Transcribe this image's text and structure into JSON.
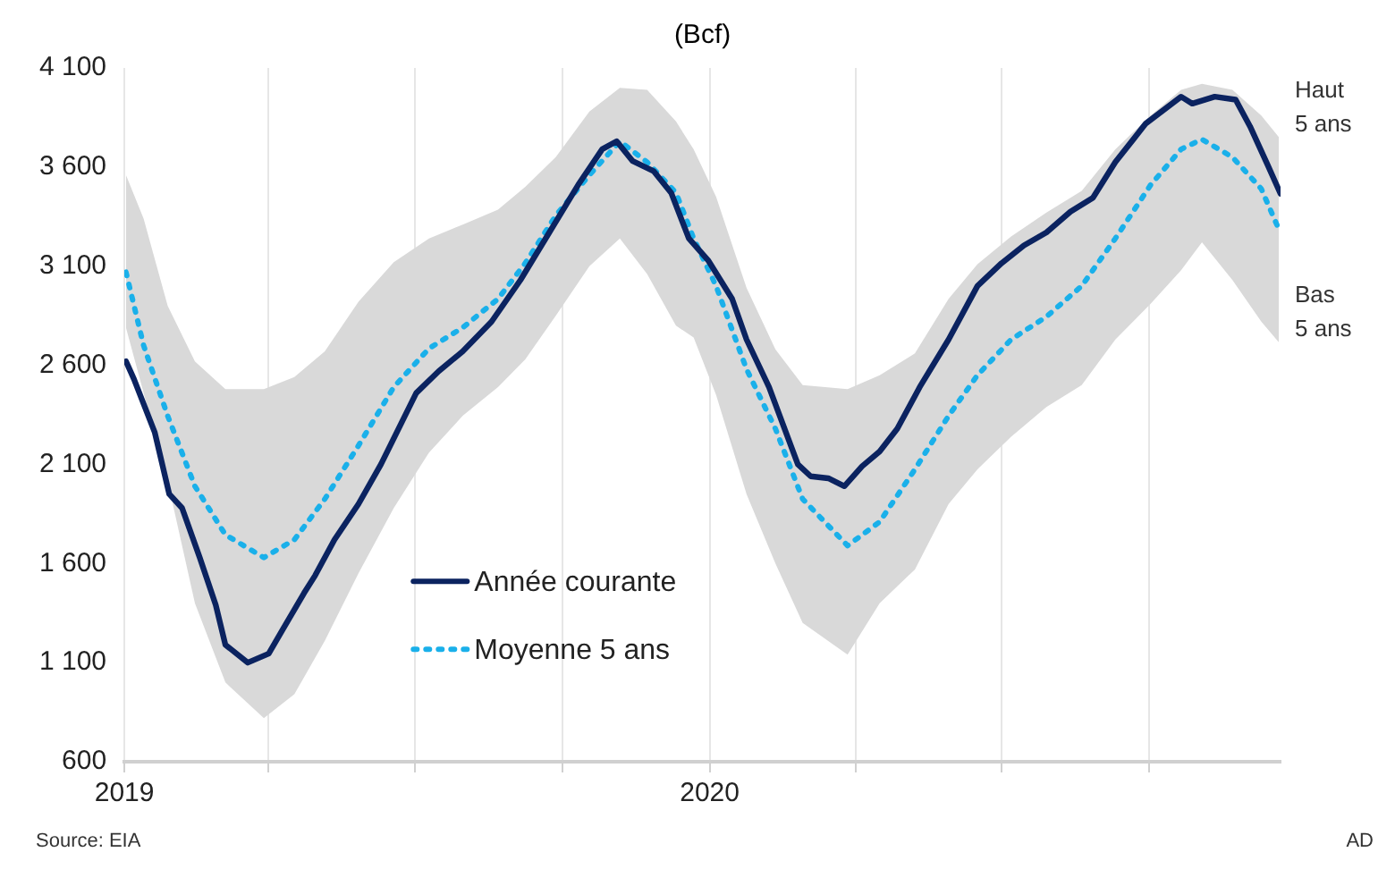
{
  "chart_data": {
    "type": "line",
    "title": "(Bcf)",
    "xlim": [
      "2019-01-01",
      "2020-12-22"
    ],
    "xticks": [
      {
        "value": "2019-01-01",
        "label": "2019"
      },
      {
        "value": "2019-04-01",
        "label": null
      },
      {
        "value": "2019-07-01",
        "label": null
      },
      {
        "value": "2019-10-01",
        "label": null
      },
      {
        "value": "2020-01-01",
        "label": "2020"
      },
      {
        "value": "2020-04-01",
        "label": null
      },
      {
        "value": "2020-07-01",
        "label": null
      },
      {
        "value": "2020-10-01",
        "label": null
      }
    ],
    "ylim": [
      600,
      4100
    ],
    "yticks": [
      {
        "value": 600,
        "label": "600"
      },
      {
        "value": 1100,
        "label": "1 100"
      },
      {
        "value": 1600,
        "label": "1 600"
      },
      {
        "value": 2100,
        "label": "2 100"
      },
      {
        "value": 2600,
        "label": "2 600"
      },
      {
        "value": 3100,
        "label": "3 100"
      },
      {
        "value": 3600,
        "label": "3 600"
      },
      {
        "value": 4100,
        "label": "4 100"
      }
    ],
    "grid": "x",
    "legend": "bottom left",
    "marker": "none",
    "series": [
      {
        "name": "Année courante",
        "color": "#0b2360",
        "line_style": "solid",
        "x": [
          "2019-01-02",
          "2019-01-07",
          "2019-01-20",
          "2019-01-29",
          "2019-02-06",
          "2019-02-17",
          "2019-02-27",
          "2019-03-05",
          "2019-03-19",
          "2019-04-01",
          "2019-04-10",
          "2019-04-23",
          "2019-04-30",
          "2019-05-12",
          "2019-05-27",
          "2019-06-10",
          "2019-07-02",
          "2019-07-16",
          "2019-07-31",
          "2019-08-18",
          "2019-09-05",
          "2019-09-23",
          "2019-10-11",
          "2019-10-26",
          "2019-11-04",
          "2019-11-14",
          "2019-11-27",
          "2019-12-08",
          "2019-12-19",
          "2019-12-31",
          "2020-01-15",
          "2020-01-24",
          "2020-02-07",
          "2020-02-25",
          "2020-03-04",
          "2020-03-15",
          "2020-03-25",
          "2020-04-05",
          "2020-04-16",
          "2020-04-27",
          "2020-05-11",
          "2020-05-29",
          "2020-06-16",
          "2020-07-01",
          "2020-07-15",
          "2020-07-29",
          "2020-08-13",
          "2020-08-27",
          "2020-09-10",
          "2020-09-29",
          "2020-10-21",
          "2020-10-28",
          "2020-11-11",
          "2020-11-24",
          "2020-12-03",
          "2020-12-14",
          "2020-12-22"
        ],
        "values": [
          2620,
          2530,
          2260,
          1950,
          1880,
          1630,
          1390,
          1190,
          1100,
          1145,
          1270,
          1450,
          1540,
          1720,
          1900,
          2100,
          2460,
          2570,
          2670,
          2820,
          3030,
          3270,
          3510,
          3690,
          3730,
          3630,
          3580,
          3470,
          3240,
          3130,
          2935,
          2730,
          2490,
          2100,
          2040,
          2030,
          1990,
          2090,
          2165,
          2280,
          2490,
          2730,
          3000,
          3115,
          3205,
          3270,
          3375,
          3445,
          3625,
          3820,
          3955,
          3920,
          3955,
          3940,
          3805,
          3610,
          3465
        ]
      },
      {
        "name": "Moyenne 5 ans",
        "color": "#1ab0ea",
        "line_style": "dotted",
        "x": [
          "2019-01-02",
          "2019-01-13",
          "2019-01-28",
          "2019-02-14",
          "2019-03-05",
          "2019-03-29",
          "2019-04-17",
          "2019-05-06",
          "2019-05-27",
          "2019-06-18",
          "2019-07-10",
          "2019-07-31",
          "2019-08-22",
          "2019-09-08",
          "2019-09-27",
          "2019-10-18",
          "2019-11-06",
          "2019-11-23",
          "2019-12-11",
          "2019-12-22",
          "2020-01-05",
          "2020-01-24",
          "2020-02-11",
          "2020-02-28",
          "2020-03-27",
          "2020-04-16",
          "2020-05-08",
          "2020-05-29",
          "2020-06-16",
          "2020-07-07",
          "2020-07-29",
          "2020-08-20",
          "2020-09-10",
          "2020-10-02",
          "2020-10-21",
          "2020-11-03",
          "2020-11-22",
          "2020-12-10",
          "2020-12-21"
        ],
        "values": [
          3070,
          2700,
          2345,
          1990,
          1745,
          1630,
          1720,
          1925,
          2195,
          2490,
          2685,
          2790,
          2935,
          3115,
          3355,
          3560,
          3730,
          3625,
          3470,
          3240,
          3000,
          2580,
          2280,
          1925,
          1690,
          1810,
          2075,
          2345,
          2550,
          2730,
          2845,
          3000,
          3240,
          3510,
          3690,
          3740,
          3650,
          3490,
          3285
        ],
        "lower": [
          2790,
          2460,
          2015,
          1400,
          1000,
          820,
          940,
          1210,
          1550,
          1880,
          2160,
          2345,
          2490,
          2630,
          2850,
          3100,
          3240,
          3060,
          2800,
          2740,
          2450,
          1950,
          1600,
          1300,
          1140,
          1400,
          1570,
          1900,
          2075,
          2240,
          2390,
          2500,
          2730,
          2910,
          3080,
          3220,
          3030,
          2820,
          2715
        ],
        "upper": [
          3560,
          3340,
          2900,
          2620,
          2480,
          2480,
          2540,
          2670,
          2920,
          3120,
          3240,
          3310,
          3385,
          3500,
          3650,
          3880,
          4000,
          3990,
          3830,
          3690,
          3450,
          2990,
          2680,
          2500,
          2480,
          2550,
          2660,
          2935,
          3110,
          3250,
          3370,
          3480,
          3690,
          3860,
          3990,
          4020,
          3990,
          3860,
          3750
        ]
      }
    ],
    "annotations": [
      {
        "text": "Haut 5 ans",
        "x": "2020-12-22",
        "y": 3750
      },
      {
        "text": "Bas 5 ans",
        "x": "2020-12-22",
        "y": 2715
      },
      "Source: EIA",
      "AD"
    ]
  }
}
